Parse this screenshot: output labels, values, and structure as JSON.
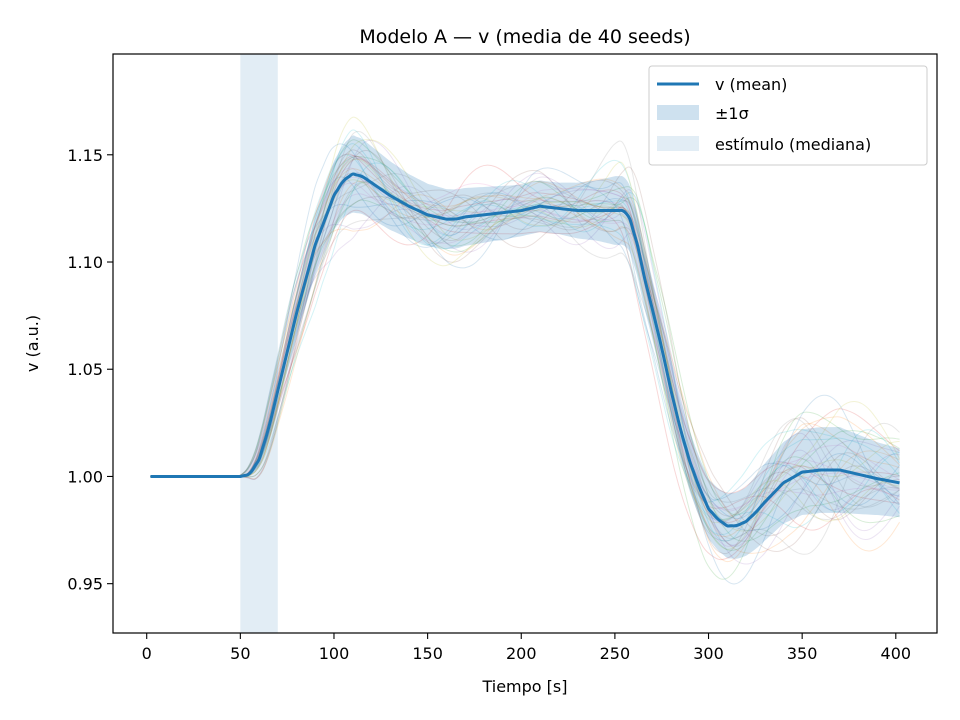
{
  "chart_data": {
    "type": "line",
    "title": "Modelo A — v (media de 40 seeds)",
    "xlabel": "Tiempo [s]",
    "ylabel": "v (a.u.)",
    "xlim": [
      -18,
      422
    ],
    "ylim": [
      0.927,
      1.197
    ],
    "xticks": [
      0,
      50,
      100,
      150,
      200,
      250,
      300,
      350,
      400
    ],
    "yticks": [
      0.95,
      1.0,
      1.05,
      1.1,
      1.15
    ],
    "xtick_labels": [
      "0",
      "50",
      "100",
      "150",
      "200",
      "250",
      "300",
      "350",
      "400"
    ],
    "ytick_labels": [
      "0.95",
      "1.00",
      "1.05",
      "1.10",
      "1.15"
    ],
    "grid": false,
    "legend_position": "top-right",
    "stimulus_span": [
      50,
      70
    ],
    "mean_series": {
      "name": "v (mean)",
      "color": "#1f77b4",
      "x": [
        2,
        40,
        50,
        55,
        60,
        65,
        70,
        75,
        80,
        90,
        100,
        105,
        110,
        115,
        120,
        130,
        140,
        150,
        160,
        165,
        170,
        180,
        190,
        200,
        210,
        220,
        230,
        240,
        250,
        255,
        258,
        262,
        266,
        270,
        275,
        280,
        285,
        290,
        295,
        300,
        305,
        310,
        315,
        320,
        325,
        330,
        340,
        350,
        360,
        370,
        380,
        390,
        402
      ],
      "y": [
        1.0,
        1.0,
        1.0,
        1.001,
        1.008,
        1.022,
        1.04,
        1.058,
        1.076,
        1.108,
        1.131,
        1.138,
        1.141,
        1.14,
        1.137,
        1.131,
        1.126,
        1.122,
        1.12,
        1.12,
        1.121,
        1.122,
        1.123,
        1.124,
        1.126,
        1.125,
        1.124,
        1.124,
        1.124,
        1.124,
        1.12,
        1.108,
        1.092,
        1.078,
        1.06,
        1.04,
        1.022,
        1.007,
        0.995,
        0.985,
        0.98,
        0.977,
        0.977,
        0.979,
        0.983,
        0.988,
        0.997,
        1.002,
        1.003,
        1.003,
        1.001,
        0.999,
        0.997
      ]
    },
    "band": {
      "name": "±1σ",
      "color": "#1f77b4",
      "opacity": 0.22,
      "sigma_x": [
        2,
        50,
        55,
        60,
        70,
        80,
        90,
        100,
        110,
        120,
        140,
        160,
        180,
        200,
        220,
        240,
        250,
        255,
        260,
        270,
        280,
        290,
        300,
        310,
        320,
        330,
        350,
        370,
        390,
        402
      ],
      "sigma": [
        0.0,
        0.0,
        0.001,
        0.003,
        0.005,
        0.01,
        0.014,
        0.016,
        0.018,
        0.017,
        0.015,
        0.014,
        0.013,
        0.012,
        0.012,
        0.014,
        0.016,
        0.016,
        0.015,
        0.014,
        0.014,
        0.014,
        0.014,
        0.015,
        0.016,
        0.018,
        0.02,
        0.02,
        0.017,
        0.016
      ]
    },
    "stimulus": {
      "name": "estímulo (mediana)",
      "color": "#1f77b4",
      "opacity": 0.13
    },
    "seed_traces": {
      "count": 40,
      "colors": [
        "#2ca02c",
        "#17becf",
        "#1f77b4",
        "#ff7f0e",
        "#d62728",
        "#9467bd",
        "#8c564b",
        "#e377c2",
        "#bcbd22",
        "#7f7f7f"
      ],
      "opacity": 0.18
    }
  }
}
